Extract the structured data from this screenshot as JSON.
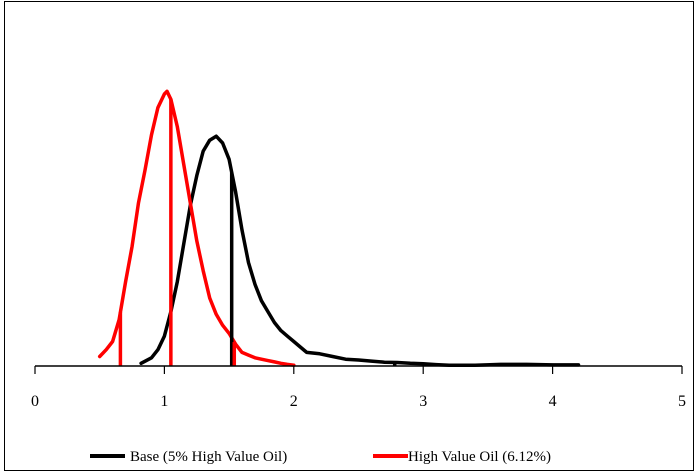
{
  "chart_data": {
    "type": "line",
    "title": "",
    "xlabel": "",
    "ylabel": "",
    "xlim": [
      0,
      5
    ],
    "x_ticks": [
      "0",
      "1",
      "2",
      "3",
      "4",
      "5"
    ],
    "y_axis_visible": false,
    "grid": false,
    "legend_position": "bottom",
    "series": [
      {
        "name": "Base (5% High Value Oil)",
        "color": "#000000",
        "x": [
          0.82,
          0.9,
          0.95,
          1.0,
          1.05,
          1.1,
          1.15,
          1.2,
          1.25,
          1.3,
          1.35,
          1.4,
          1.45,
          1.5,
          1.55,
          1.6,
          1.65,
          1.7,
          1.75,
          1.8,
          1.85,
          1.9,
          1.95,
          2.0,
          2.05,
          2.1,
          2.2,
          2.3,
          2.4,
          2.5,
          2.6,
          2.7,
          2.8,
          2.9,
          3.0,
          3.1,
          3.2,
          3.4,
          3.6,
          3.8,
          4.0,
          4.2
        ],
        "y": [
          0.01,
          0.03,
          0.06,
          0.11,
          0.2,
          0.31,
          0.45,
          0.59,
          0.7,
          0.79,
          0.83,
          0.845,
          0.82,
          0.76,
          0.64,
          0.5,
          0.38,
          0.3,
          0.24,
          0.2,
          0.16,
          0.13,
          0.11,
          0.09,
          0.07,
          0.05,
          0.045,
          0.035,
          0.025,
          0.022,
          0.018,
          0.014,
          0.013,
          0.01,
          0.008,
          0.005,
          0.003,
          0.003,
          0.006,
          0.006,
          0.004,
          0.004
        ],
        "markers": [
          {
            "x": 1.52
          },
          {
            "x": 2.78
          }
        ]
      },
      {
        "name": "High Value Oil (6.12%)",
        "color": "#ff0000",
        "x": [
          0.5,
          0.55,
          0.6,
          0.65,
          0.7,
          0.75,
          0.8,
          0.85,
          0.9,
          0.95,
          1.0,
          1.02,
          1.05,
          1.1,
          1.15,
          1.2,
          1.25,
          1.3,
          1.35,
          1.4,
          1.45,
          1.5,
          1.55,
          1.6,
          1.65,
          1.7,
          1.75,
          1.8,
          1.85,
          1.9,
          1.95,
          2.0
        ],
        "y": [
          0.035,
          0.06,
          0.09,
          0.17,
          0.31,
          0.44,
          0.6,
          0.72,
          0.85,
          0.95,
          1.0,
          1.01,
          0.98,
          0.88,
          0.74,
          0.6,
          0.46,
          0.35,
          0.25,
          0.19,
          0.15,
          0.12,
          0.08,
          0.05,
          0.04,
          0.03,
          0.025,
          0.02,
          0.015,
          0.01,
          0.006,
          0.003
        ],
        "markers": [
          {
            "x": 0.66
          },
          {
            "x": 1.05
          },
          {
            "x": 1.54
          }
        ]
      }
    ]
  }
}
